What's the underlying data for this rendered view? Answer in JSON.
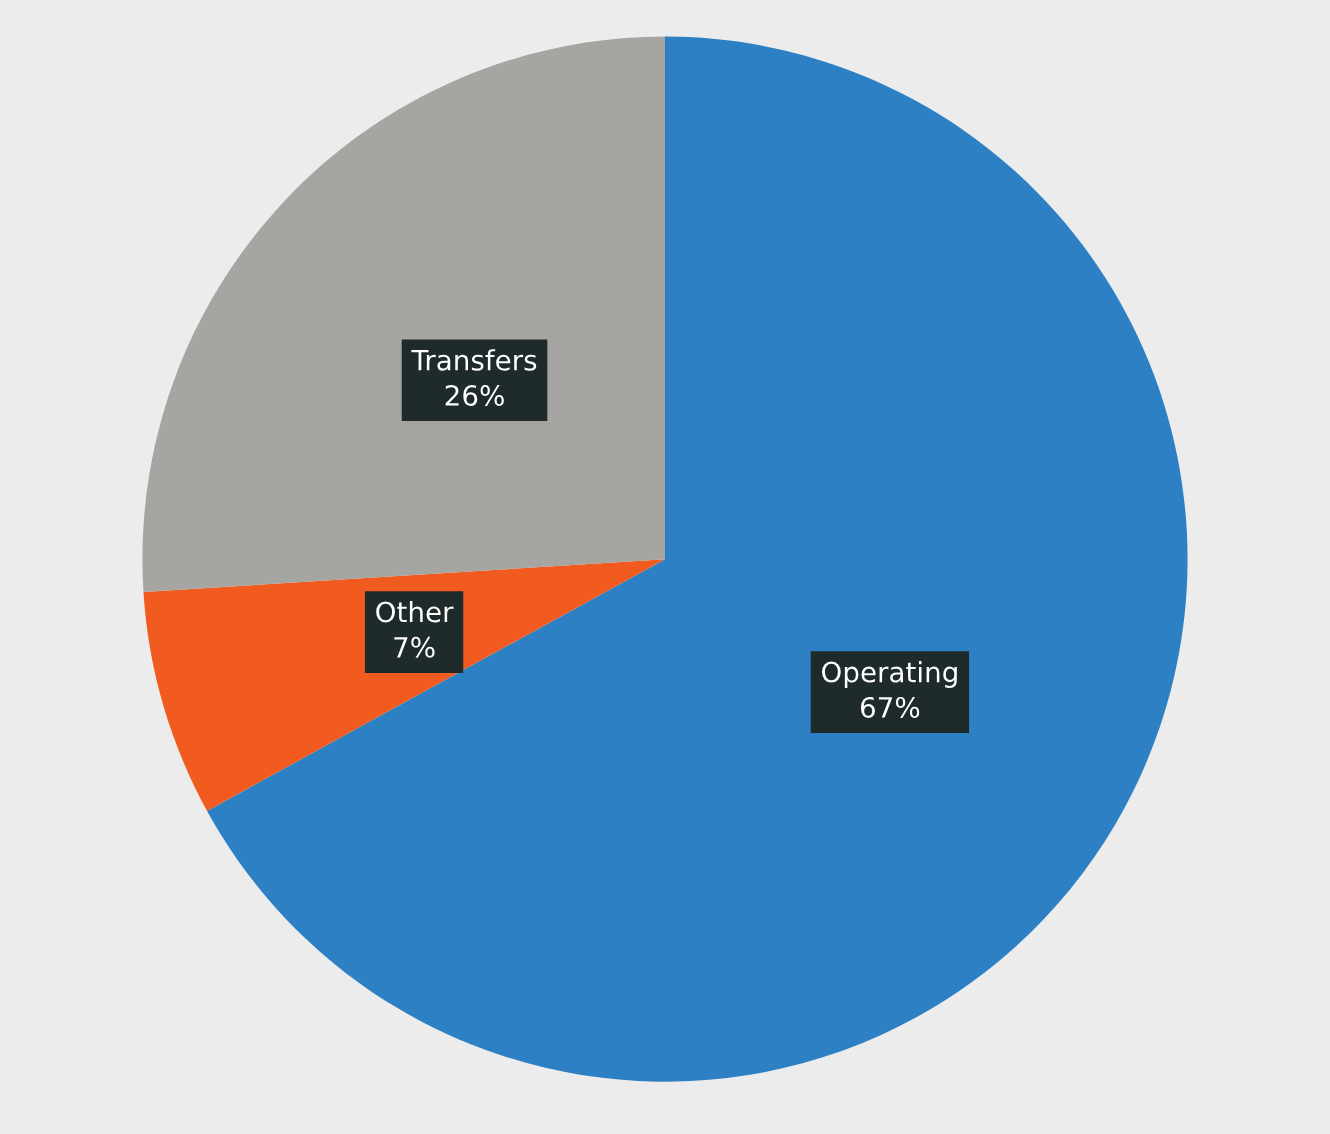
{
  "chart_data": {
    "type": "pie",
    "categories": [
      "Operating",
      "Other",
      "Transfers"
    ],
    "values": [
      67,
      7,
      26
    ],
    "value_labels": [
      "67%",
      "7%",
      "26%"
    ],
    "colors": [
      "#2e80c4",
      "#f25b1f",
      "#a7a5a2"
    ],
    "legend": false
  }
}
